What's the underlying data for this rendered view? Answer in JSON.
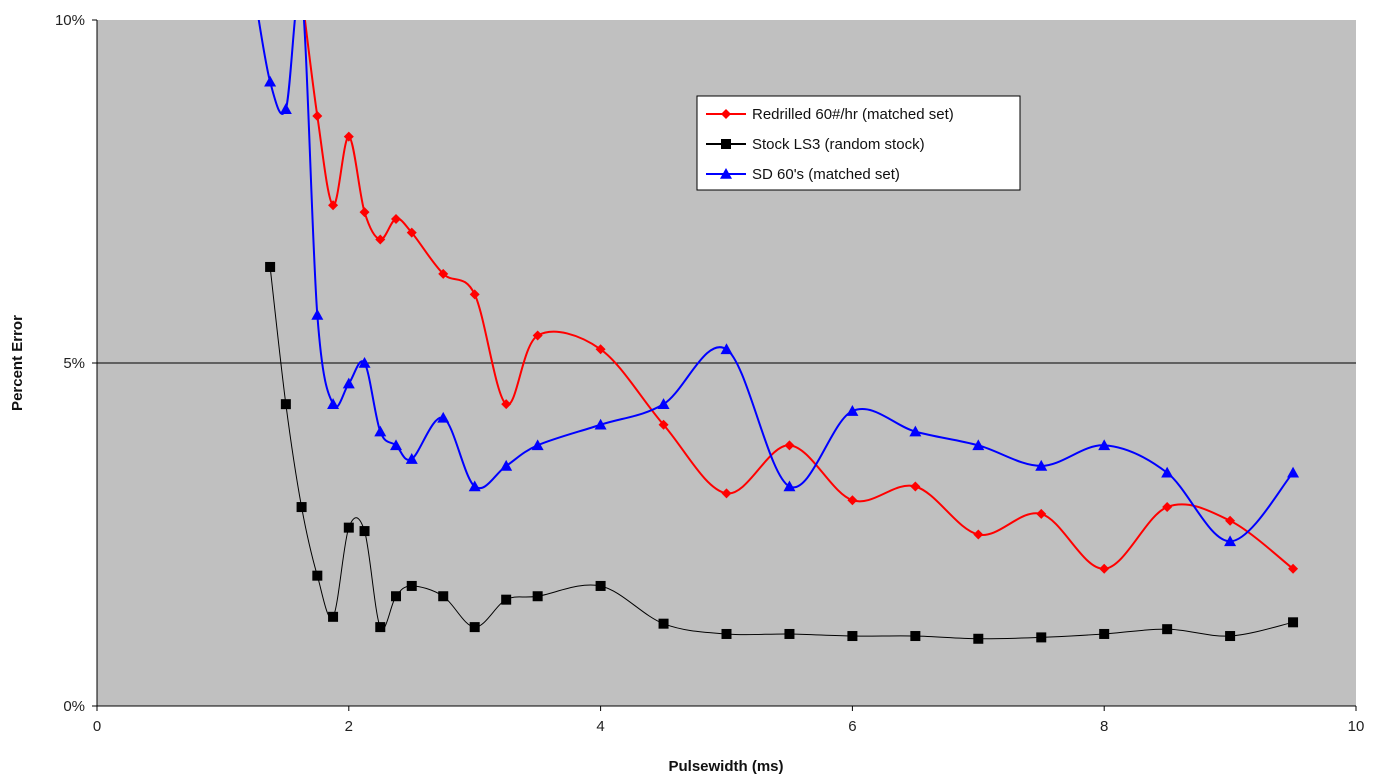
{
  "chart_data": {
    "type": "line",
    "xlabel": "Pulsewidth (ms)",
    "ylabel": "Percent Error",
    "xlim": [
      0,
      10
    ],
    "ylim": [
      0,
      10
    ],
    "x_ticks": [
      {
        "value": 0,
        "label": "0"
      },
      {
        "value": 2,
        "label": "2"
      },
      {
        "value": 4,
        "label": "4"
      },
      {
        "value": 6,
        "label": "6"
      },
      {
        "value": 8,
        "label": "8"
      },
      {
        "value": 10,
        "label": "10"
      }
    ],
    "y_ticks": [
      {
        "value": 0,
        "label": "0%"
      },
      {
        "value": 5,
        "label": "5%"
      },
      {
        "value": 10,
        "label": "10%"
      }
    ],
    "grid": "horizontal major gridline at 5%",
    "legend_position": "top-center",
    "plot_background": "#c0c0c0",
    "series": [
      {
        "name": "Redrilled 60#/hr (matched set)",
        "color": "#ff0000",
        "marker": "diamond",
        "points": [
          [
            1.625,
            10.4
          ],
          [
            1.75,
            8.6
          ],
          [
            1.875,
            7.3
          ],
          [
            2.0,
            8.3
          ],
          [
            2.125,
            7.2
          ],
          [
            2.25,
            6.8
          ],
          [
            2.375,
            7.1
          ],
          [
            2.5,
            6.9
          ],
          [
            2.75,
            6.3
          ],
          [
            3.0,
            6.0
          ],
          [
            3.25,
            4.4
          ],
          [
            3.5,
            5.4
          ],
          [
            4.0,
            5.2
          ],
          [
            4.5,
            4.1
          ],
          [
            5.0,
            3.1
          ],
          [
            5.5,
            3.8
          ],
          [
            6.0,
            3.0
          ],
          [
            6.5,
            3.2
          ],
          [
            7.0,
            2.5
          ],
          [
            7.5,
            2.8
          ],
          [
            8.0,
            2.0
          ],
          [
            8.5,
            2.9
          ],
          [
            9.0,
            2.7
          ],
          [
            9.5,
            2.0
          ]
        ]
      },
      {
        "name": "Stock LS3 (random stock)",
        "color": "#000000",
        "marker": "square",
        "points": [
          [
            1.375,
            6.4
          ],
          [
            1.5,
            4.4
          ],
          [
            1.625,
            2.9
          ],
          [
            1.75,
            1.9
          ],
          [
            1.875,
            1.3
          ],
          [
            2.0,
            2.6
          ],
          [
            2.125,
            2.55
          ],
          [
            2.25,
            1.15
          ],
          [
            2.375,
            1.6
          ],
          [
            2.5,
            1.75
          ],
          [
            2.75,
            1.6
          ],
          [
            3.0,
            1.15
          ],
          [
            3.25,
            1.55
          ],
          [
            3.5,
            1.6
          ],
          [
            4.0,
            1.75
          ],
          [
            4.5,
            1.2
          ],
          [
            5.0,
            1.05
          ],
          [
            5.5,
            1.05
          ],
          [
            6.0,
            1.02
          ],
          [
            6.5,
            1.02
          ],
          [
            7.0,
            0.98
          ],
          [
            7.5,
            1.0
          ],
          [
            8.0,
            1.05
          ],
          [
            8.5,
            1.12
          ],
          [
            9.0,
            1.02
          ],
          [
            9.5,
            1.22
          ]
        ]
      },
      {
        "name": "SD 60's (matched set)",
        "color": "#0000ff",
        "marker": "triangle",
        "points": [
          [
            1.25,
            10.4
          ],
          [
            1.375,
            9.1
          ],
          [
            1.5,
            8.7
          ],
          [
            1.625,
            10.4
          ],
          [
            1.75,
            5.7
          ],
          [
            1.875,
            4.4
          ],
          [
            2.0,
            4.7
          ],
          [
            2.125,
            5.0
          ],
          [
            2.25,
            4.0
          ],
          [
            2.375,
            3.8
          ],
          [
            2.5,
            3.6
          ],
          [
            2.75,
            4.2
          ],
          [
            3.0,
            3.2
          ],
          [
            3.25,
            3.5
          ],
          [
            3.5,
            3.8
          ],
          [
            4.0,
            4.1
          ],
          [
            4.5,
            4.4
          ],
          [
            5.0,
            5.2
          ],
          [
            5.5,
            3.2
          ],
          [
            6.0,
            4.3
          ],
          [
            6.5,
            4.0
          ],
          [
            7.0,
            3.8
          ],
          [
            7.5,
            3.5
          ],
          [
            8.0,
            3.8
          ],
          [
            8.5,
            3.4
          ],
          [
            9.0,
            2.4
          ],
          [
            9.5,
            3.4
          ]
        ]
      }
    ]
  }
}
